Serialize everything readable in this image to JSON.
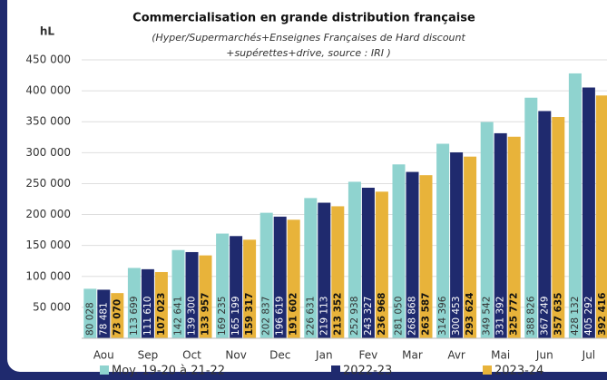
{
  "chart_data": {
    "type": "bar",
    "title": "Commercialisation en grande distribution française",
    "subtitle": [
      "(Hyper/Supermarchés+Enseignes Françaises de Hard discount",
      "+supérettes+drive, source : IRI )"
    ],
    "y_label": "hL",
    "categories": [
      "Aou",
      "Sep",
      "Oct",
      "Nov",
      "Dec",
      "Jan",
      "Fev",
      "Mar",
      "Avr",
      "Mai",
      "Jun",
      "Jul"
    ],
    "series": [
      {
        "name": "Moy. 19-20 à 21-22",
        "color": "#8fd3cf",
        "values": [
          80028,
          113699,
          142641,
          169235,
          202837,
          226631,
          252938,
          281050,
          314396,
          349542,
          388826,
          428132
        ],
        "value_labels": [
          "80 028",
          "113 699",
          "142 641",
          "169 235",
          "202 837",
          "226 631",
          "252 938",
          "281 050",
          "314 396",
          "349 542",
          "388 826",
          "428 132"
        ]
      },
      {
        "name": "2022-23",
        "color": "#1f2a6e",
        "values": [
          78481,
          111610,
          139300,
          165199,
          196619,
          219113,
          243327,
          268868,
          300453,
          331392,
          367249,
          405292
        ],
        "value_labels": [
          "78 481",
          "111 610",
          "139 300",
          "165 199",
          "196 619",
          "219 113",
          "243 327",
          "268 868",
          "300 453",
          "331 392",
          "367 249",
          "405 292"
        ]
      },
      {
        "name": "2023-24",
        "color": "#e8b33a",
        "values": [
          73070,
          107023,
          133957,
          159317,
          191602,
          213352,
          236968,
          263587,
          293624,
          325772,
          357635,
          392416
        ],
        "value_labels": [
          "73 070",
          "107 023",
          "133 957",
          "159 317",
          "191 602",
          "213 352",
          "236 968",
          "263 587",
          "293 624",
          "325 772",
          "357 635",
          "392 416"
        ]
      }
    ],
    "ylim": [
      0,
      450000
    ],
    "yticks": [
      {
        "value": 50000,
        "label": "50 000"
      },
      {
        "value": 100000,
        "label": "100 000"
      },
      {
        "value": 150000,
        "label": "150 000"
      },
      {
        "value": 200000,
        "label": "200 000"
      },
      {
        "value": 250000,
        "label": "250 000"
      },
      {
        "value": 300000,
        "label": "300 000"
      },
      {
        "value": 350000,
        "label": "350 000"
      },
      {
        "value": 400000,
        "label": "400 000"
      },
      {
        "value": 450000,
        "label": "450 000"
      }
    ],
    "grid": true
  }
}
